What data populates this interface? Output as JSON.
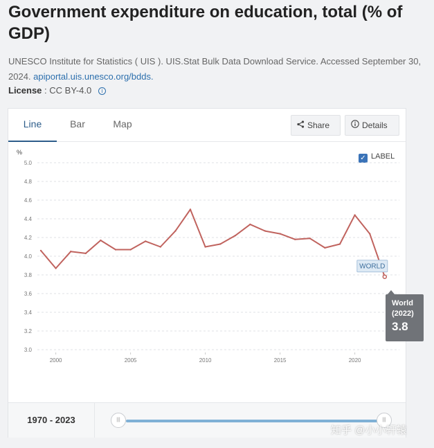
{
  "header": {
    "title": "Government expenditure on education, total (% of GDP)",
    "source_text": "UNESCO Institute for Statistics ( UIS ). UIS.Stat Bulk Data Download Service. Accessed September 30, 2024. ",
    "source_link": "apiportal.uis.unesco.org/bdds.",
    "license_label": "License",
    "license_value": ": CC BY-4.0",
    "info_icon": "i"
  },
  "tabs": [
    {
      "label": "Line",
      "active": true
    },
    {
      "label": "Bar",
      "active": false
    },
    {
      "label": "Map",
      "active": false
    }
  ],
  "toolbar": {
    "share_label": "Share",
    "details_label": "Details",
    "share_icon": "share-icon",
    "details_icon": "info-icon"
  },
  "label_toggle": {
    "label": "LABEL",
    "checked": true
  },
  "chart_data": {
    "type": "line",
    "ylabel": "%",
    "ylim": [
      3.0,
      5.0
    ],
    "yticks": [
      "5.0",
      "4.8",
      "4.6",
      "4.4",
      "4.2",
      "4.0",
      "3.8",
      "3.6",
      "3.4",
      "3.2",
      "3.0"
    ],
    "xticks": [
      "2000",
      "2005",
      "2010",
      "2015",
      "2020"
    ],
    "grid": true,
    "series": [
      {
        "name": "WORLD",
        "color": "#c0635e",
        "x": [
          1999,
          2000,
          2001,
          2002,
          2003,
          2004,
          2005,
          2006,
          2007,
          2008,
          2009,
          2010,
          2011,
          2012,
          2013,
          2014,
          2015,
          2016,
          2017,
          2018,
          2019,
          2020,
          2021,
          2022
        ],
        "values": [
          4.06,
          3.87,
          4.05,
          4.03,
          4.17,
          4.07,
          4.07,
          4.16,
          4.1,
          4.27,
          4.5,
          4.1,
          4.13,
          4.22,
          4.34,
          4.27,
          4.24,
          4.18,
          4.19,
          4.09,
          4.13,
          4.44,
          4.24,
          3.78
        ]
      }
    ],
    "series_label": "WORLD"
  },
  "tooltip": {
    "name": "World",
    "year": "(2022)",
    "value": "3.8"
  },
  "footer": {
    "range_start": "1970",
    "range_sep": " - ",
    "range_end": "2023",
    "handle_glyph": "|||"
  },
  "watermark": "知乎 @小小轩辕"
}
